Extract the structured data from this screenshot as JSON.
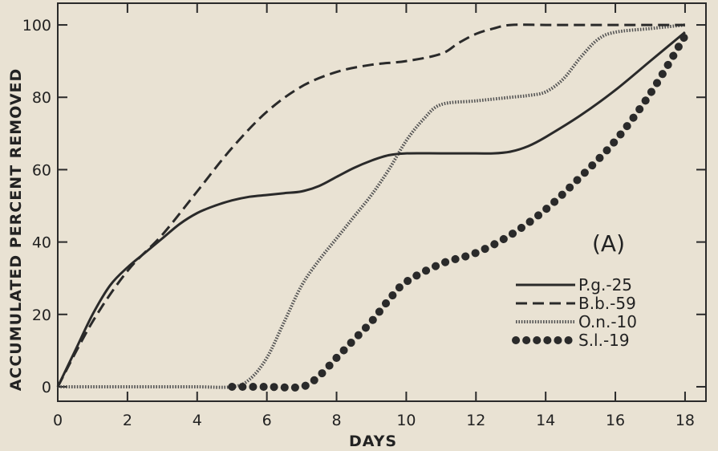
{
  "chart_data": {
    "type": "line",
    "title": "",
    "xlabel": "DAYS",
    "ylabel": "ACCUMULATED PERCENT REMOVED",
    "annotation": "(A)",
    "xlim": [
      0,
      18.6
    ],
    "ylim": [
      -4,
      106
    ],
    "xticks": [
      0,
      2,
      4,
      6,
      8,
      10,
      12,
      14,
      16,
      18
    ],
    "yticks": [
      0,
      20,
      40,
      60,
      80,
      100
    ],
    "grid": false,
    "legend_position": "right-middle",
    "series": [
      {
        "name": "P.g.-25",
        "style": "solid",
        "color": "#2a2a2a",
        "x": [
          0,
          0.5,
          1,
          1.5,
          2,
          2.5,
          3,
          3.5,
          4,
          4.5,
          5,
          5.5,
          6,
          6.5,
          7,
          7.5,
          8,
          8.5,
          9,
          9.5,
          10,
          11,
          12,
          12.5,
          13,
          13.5,
          14,
          15,
          16,
          17,
          18
        ],
        "y": [
          0,
          10,
          20,
          28,
          33,
          37,
          41,
          45,
          48,
          50,
          51.5,
          52.5,
          53,
          53.5,
          54,
          55.5,
          58,
          60.5,
          62.5,
          64,
          64.5,
          64.5,
          64.5,
          64.5,
          65,
          66.5,
          69,
          75,
          82,
          90,
          98
        ]
      },
      {
        "name": "B.b.-59",
        "style": "dashed",
        "color": "#2a2a2a",
        "x": [
          0,
          1,
          2,
          3,
          4,
          5,
          6,
          7,
          8,
          9,
          10,
          11,
          11.5,
          12,
          12.5,
          13,
          14,
          15,
          16,
          17,
          18
        ],
        "y": [
          0,
          18,
          32,
          42,
          54,
          66,
          76,
          83,
          87,
          89,
          90,
          92,
          95,
          97.5,
          99,
          100,
          100,
          100,
          100,
          100,
          100
        ]
      },
      {
        "name": "O.n.-10",
        "style": "dotted",
        "color": "#555555",
        "x": [
          0,
          1,
          2,
          3,
          4,
          5,
          5.5,
          6,
          6.5,
          7,
          7.5,
          8,
          8.5,
          9,
          9.5,
          10,
          10.5,
          11,
          12,
          13,
          13.5,
          14,
          14.5,
          15,
          15.5,
          16,
          17,
          18
        ],
        "y": [
          0,
          0,
          0,
          0,
          0,
          0,
          2,
          8,
          18,
          28,
          35,
          41,
          47,
          53,
          60,
          68,
          74,
          78,
          79,
          80,
          80.5,
          81.5,
          85,
          91,
          96,
          98,
          99,
          100
        ]
      },
      {
        "name": "S.l.-19",
        "style": "dotted-bold",
        "color": "#2a2a2a",
        "x": [
          5,
          6,
          7,
          7.5,
          8,
          8.5,
          9,
          9.5,
          10,
          11,
          12,
          13,
          14,
          15,
          16,
          17,
          18
        ],
        "y": [
          0,
          0,
          0,
          3,
          8,
          13,
          18,
          24,
          29,
          34,
          37,
          42,
          49,
          58,
          68,
          81,
          97
        ]
      }
    ]
  }
}
